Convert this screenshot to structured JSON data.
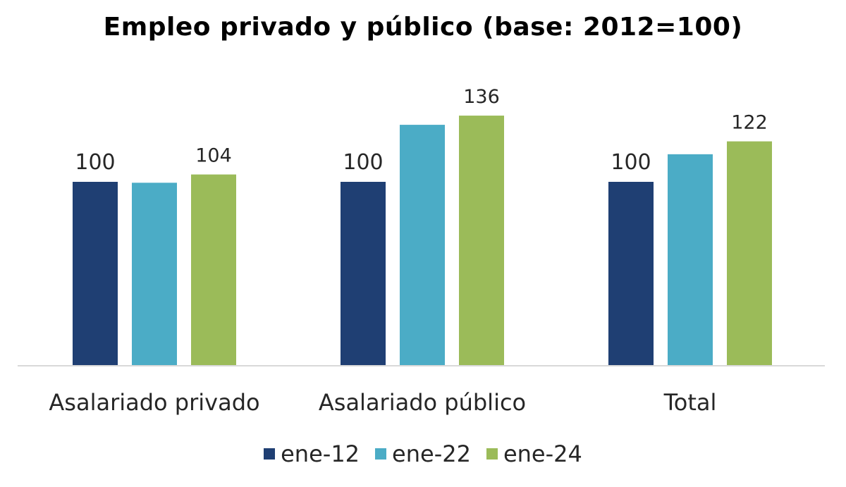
{
  "chart_data": {
    "type": "bar",
    "title": "Empleo privado y público (base: 2012=100)",
    "categories": [
      "Asalariado privado",
      "Asalariado público",
      "Total"
    ],
    "series": [
      {
        "name": "ene-12",
        "color": "#1f3f73",
        "values": [
          100,
          100,
          100
        ],
        "labels": [
          "100",
          "100",
          "100"
        ]
      },
      {
        "name": "ene-22",
        "color": "#4bacc6",
        "values": [
          99.5,
          131,
          115
        ],
        "labels": [
          "",
          "",
          ""
        ]
      },
      {
        "name": "ene-24",
        "color": "#9bbb59",
        "values": [
          104,
          136,
          122
        ],
        "labels": [
          "104",
          "136",
          "122"
        ]
      }
    ],
    "xlabel": "",
    "ylabel": "",
    "ylim": [
      0,
      136
    ],
    "grid": false,
    "legend": "bottom"
  }
}
